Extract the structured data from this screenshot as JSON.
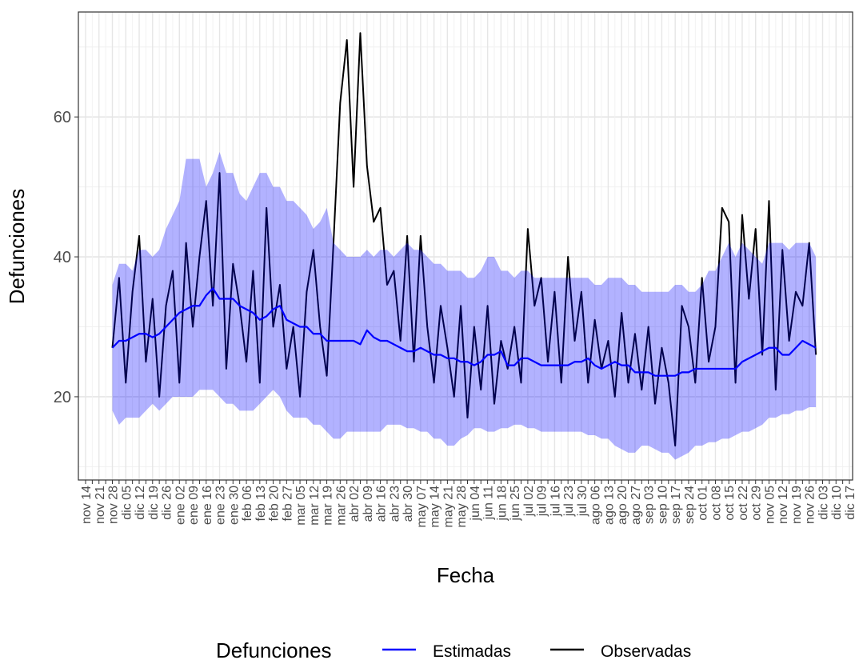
{
  "chart_data": {
    "type": "line",
    "ylabel": "Defunciones",
    "xlabel": "Fecha",
    "legend_title": "Defunciones",
    "legend": "bottom",
    "grid": true,
    "categories": [
      "nov 14",
      null,
      "nov 21",
      null,
      "nov 28",
      null,
      "dic 05",
      null,
      "dic 12",
      null,
      "dic 19",
      null,
      "dic 26",
      null,
      "ene 02",
      null,
      "ene 09",
      null,
      "ene 16",
      null,
      "ene 23",
      null,
      "ene 30",
      null,
      "feb 06",
      null,
      "feb 13",
      null,
      "feb 20",
      null,
      "feb 27",
      null,
      "mar 05",
      null,
      "mar 12",
      null,
      "mar 19",
      null,
      "mar 26",
      null,
      "abr 02",
      null,
      "abr 09",
      null,
      "abr 16",
      null,
      "abr 23",
      null,
      "abr 30",
      null,
      "may 07",
      null,
      "may 14",
      null,
      "may 21",
      null,
      "may 28",
      null,
      "jun 04",
      null,
      "jun 11",
      null,
      "jun 18",
      null,
      "jun 25",
      null,
      "jul 02",
      null,
      "jul 09",
      null,
      "jul 16",
      null,
      "jul 23",
      null,
      "jul 30",
      null,
      "ago 06",
      null,
      "ago 13",
      null,
      "ago 20",
      null,
      "ago 27",
      null,
      "sep 03",
      null,
      "sep 10",
      null,
      "sep 17",
      null,
      "sep 24",
      null,
      "oct 01",
      null,
      "oct 08",
      null,
      "oct 15",
      null,
      "oct 22",
      null,
      "oct 29",
      null,
      "nov 05",
      null,
      "nov 12",
      null,
      "nov 19",
      null,
      "nov 26",
      null,
      "dic 03",
      null,
      "dic 10",
      null,
      "dic 17",
      null
    ],
    "band": {
      "color": "#0000ff",
      "opacity": 0.3,
      "upper": [
        null,
        null,
        null,
        null,
        36,
        39,
        39,
        38,
        41,
        41,
        40,
        41,
        44,
        46,
        48,
        54,
        54,
        54,
        50,
        52,
        55,
        52,
        52,
        49,
        48,
        50,
        52,
        52,
        50,
        50,
        48,
        48,
        47,
        46,
        44,
        45,
        47,
        42,
        41,
        40,
        40,
        40,
        41,
        40,
        41,
        41,
        40,
        41,
        42,
        41,
        41,
        40,
        39,
        39,
        38,
        38,
        38,
        37,
        37,
        38,
        40,
        40,
        38,
        38,
        37,
        38,
        38,
        37,
        37,
        37,
        37,
        37,
        37,
        37,
        37,
        37,
        36,
        36,
        37,
        37,
        37,
        36,
        36,
        35,
        35,
        35,
        35,
        35,
        36,
        36,
        35,
        35,
        36,
        38,
        38,
        40,
        42,
        40,
        42,
        41,
        40,
        39,
        42,
        42,
        42,
        41,
        42,
        42,
        42,
        40,
        null,
        null,
        null,
        null,
        null,
        null
      ],
      "lower": [
        null,
        null,
        null,
        null,
        18,
        16,
        17,
        17,
        17,
        18,
        19,
        18,
        19,
        20,
        20,
        20,
        20,
        21,
        21,
        21,
        20,
        19,
        19,
        18,
        18,
        18,
        19,
        20,
        21,
        20,
        18,
        17,
        17,
        17,
        16,
        16,
        15,
        14,
        14,
        15,
        15,
        15,
        15,
        15,
        15,
        16,
        16,
        16,
        15.5,
        15.5,
        15,
        15,
        14,
        14,
        13,
        13,
        14,
        14.5,
        15.5,
        15.5,
        15,
        15,
        15.5,
        15.5,
        16,
        16,
        15.5,
        15.5,
        15,
        15,
        15,
        15,
        15,
        15,
        15,
        14.5,
        14.5,
        14,
        14,
        13,
        12.5,
        12,
        12,
        13,
        13,
        12.5,
        12,
        12,
        11,
        11.5,
        12,
        13,
        13,
        13.5,
        13.5,
        14,
        14,
        14.5,
        15,
        15,
        15.5,
        16,
        17,
        17,
        17.5,
        17.5,
        18,
        18,
        18.5,
        18.5,
        null,
        null,
        null,
        null,
        null,
        null
      ]
    },
    "ylim": [
      8.1,
      75
    ],
    "yticks": [
      20,
      40,
      60
    ],
    "y_minor_ticks": [
      10,
      30,
      50,
      70
    ],
    "series": [
      {
        "name": "Estimadas",
        "color": "#0000ff",
        "values": [
          null,
          null,
          null,
          null,
          27,
          28,
          28,
          28.5,
          29,
          29,
          28.5,
          29,
          30,
          31,
          32,
          32.5,
          33,
          33,
          34.5,
          35.5,
          34,
          34,
          34,
          33,
          32.5,
          32,
          31,
          31.5,
          32.5,
          33,
          31,
          30.5,
          30,
          30,
          29,
          29,
          28,
          28,
          28,
          28,
          28,
          27.5,
          29.5,
          28.5,
          28,
          28,
          27.5,
          27,
          26.5,
          26.5,
          27,
          26.5,
          26,
          26,
          25.5,
          25.5,
          25,
          25,
          24.5,
          25,
          26,
          26,
          26.5,
          24.5,
          24.5,
          25.5,
          25.5,
          25,
          24.5,
          24.5,
          24.5,
          24.5,
          24.5,
          25,
          25,
          25.5,
          24.5,
          24,
          24.5,
          25,
          24.5,
          24.5,
          23.5,
          23.5,
          23.5,
          23,
          23,
          23,
          23,
          23.5,
          23.5,
          24,
          24,
          24,
          24,
          24,
          24,
          24,
          25,
          25.5,
          26,
          26.5,
          27,
          27,
          26,
          26,
          27,
          28,
          27.5,
          27,
          null,
          null,
          null,
          null,
          null,
          null
        ]
      },
      {
        "name": "Observadas",
        "color": "#000000",
        "values": [
          null,
          null,
          null,
          null,
          27,
          37,
          22,
          35,
          43,
          25,
          34,
          20,
          33,
          38,
          22,
          42,
          30,
          40,
          48,
          33,
          52,
          24,
          39,
          33,
          25,
          38,
          22,
          47,
          30,
          36,
          24,
          30,
          20,
          35,
          41,
          30,
          23,
          42,
          62,
          71,
          50,
          72,
          53,
          45,
          47,
          36,
          38,
          28,
          43,
          25,
          43,
          30,
          22,
          33,
          27,
          20,
          33,
          17,
          30,
          21,
          33,
          19,
          28,
          24,
          30,
          22,
          44,
          33,
          37,
          25,
          35,
          22,
          40,
          28,
          35,
          22,
          31,
          24,
          28,
          20,
          32,
          22,
          29,
          21,
          30,
          19,
          27,
          22,
          13,
          33,
          30,
          22,
          37,
          25,
          30,
          47,
          45,
          22,
          46,
          34,
          44,
          26,
          48,
          21,
          41,
          28,
          35,
          33,
          42,
          26,
          null,
          null,
          null,
          null,
          null,
          null
        ]
      }
    ]
  }
}
